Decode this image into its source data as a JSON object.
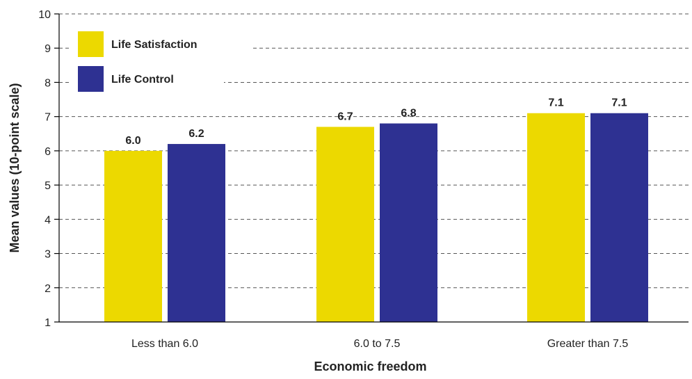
{
  "chart_data": {
    "type": "bar",
    "title": "",
    "xlabel": "Economic freedom",
    "ylabel": "Mean values (10-point scale)",
    "categories": [
      "Less than 6.0",
      "6.0 to 7.5",
      "Greater than 7.5"
    ],
    "series": [
      {
        "name": "Life Satisfaction",
        "color": "#ecd900",
        "values": [
          6.0,
          6.7,
          7.1
        ],
        "labels": [
          "6.0",
          "6.7",
          "7.1"
        ]
      },
      {
        "name": "Life Control",
        "color": "#2e3192",
        "values": [
          6.2,
          6.8,
          7.1
        ],
        "labels": [
          "6.2",
          "6.8",
          "7.1"
        ]
      }
    ],
    "ylim": [
      1,
      10
    ],
    "yticks": [
      "1",
      "2",
      "3",
      "4",
      "5",
      "6",
      "7",
      "8",
      "9",
      "10"
    ],
    "grid": true,
    "legend_position": "top-left"
  }
}
